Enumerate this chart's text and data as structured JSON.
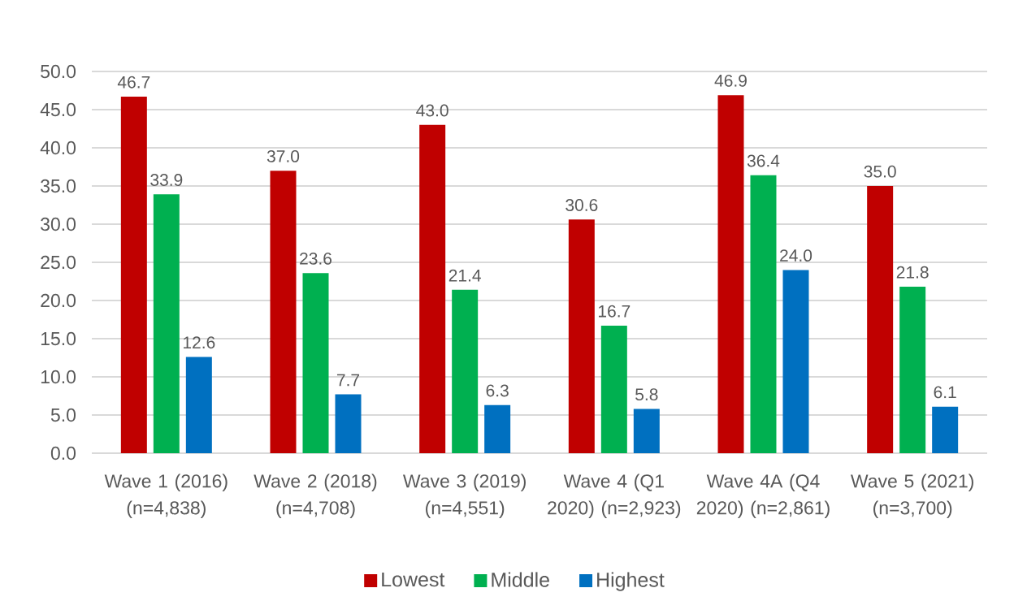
{
  "chart_data": {
    "type": "bar",
    "categories": [
      "Wave 1 (2016) (n=4,838)",
      "Wave 2 (2018) (n=4,708)",
      "Wave 3 (2019) (n=4,551)",
      "Wave 4 (Q1 2020) (n=2,923)",
      "Wave 4A (Q4 2020) (n=2,861)",
      "Wave 5 (2021) (n=3,700)"
    ],
    "series": [
      {
        "name": "Lowest",
        "color": "#c00000",
        "values": [
          46.7,
          37.0,
          43.0,
          30.6,
          46.9,
          35.0
        ],
        "value_labels": [
          "46.7",
          "37.0",
          "43.0",
          "30.6",
          "46.9",
          "35.0"
        ]
      },
      {
        "name": "Middle",
        "color": "#00b050",
        "values": [
          33.9,
          23.6,
          21.4,
          16.7,
          36.4,
          21.8
        ],
        "value_labels": [
          "33.9",
          "23.6",
          "21.4",
          "16.7",
          "36.4",
          "21.8"
        ]
      },
      {
        "name": "Highest",
        "color": "#0070c0",
        "values": [
          12.6,
          7.7,
          6.3,
          5.8,
          24.0,
          6.1
        ],
        "value_labels": [
          "12.6",
          "7.7",
          "6.3",
          "5.8",
          "24.0",
          "6.1"
        ]
      }
    ],
    "ylim": [
      0,
      50
    ],
    "yticks": [
      {
        "value": 0,
        "label": "0.0"
      },
      {
        "value": 5,
        "label": "5.0"
      },
      {
        "value": 10,
        "label": "10.0"
      },
      {
        "value": 15,
        "label": "15.0"
      },
      {
        "value": 20,
        "label": "20.0"
      },
      {
        "value": 25,
        "label": "25.0"
      },
      {
        "value": 30,
        "label": "30.0"
      },
      {
        "value": 35,
        "label": "35.0"
      },
      {
        "value": 40,
        "label": "40.0"
      },
      {
        "value": 45,
        "label": "45.0"
      },
      {
        "value": 50,
        "label": "50.0"
      }
    ],
    "grid": "y",
    "legend": "bottom"
  }
}
